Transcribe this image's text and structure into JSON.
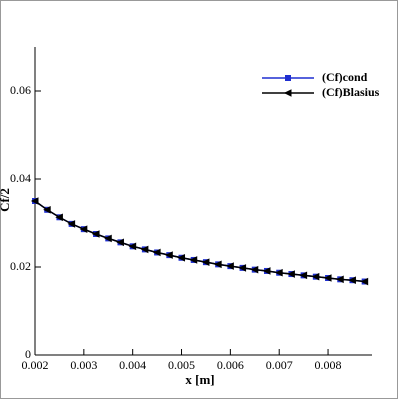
{
  "chart_data": {
    "type": "line",
    "x_label": "x [m]",
    "y_label": "Cf/2",
    "x": [
      0.002,
      0.00225,
      0.0025,
      0.00275,
      0.003,
      0.00325,
      0.0035,
      0.00375,
      0.004,
      0.00425,
      0.0045,
      0.00475,
      0.005,
      0.00525,
      0.0055,
      0.00575,
      0.006,
      0.00625,
      0.0065,
      0.00675,
      0.007,
      0.00725,
      0.0075,
      0.00775,
      0.008,
      0.00825,
      0.0085,
      0.00875
    ],
    "series": [
      {
        "name": "(Cf)cond",
        "color": "#1f2fd0",
        "marker": "square",
        "values": [
          0.035,
          0.033,
          0.0313,
          0.0298,
          0.0286,
          0.0275,
          0.0265,
          0.0256,
          0.0247,
          0.024,
          0.0233,
          0.0227,
          0.0221,
          0.0216,
          0.0211,
          0.0206,
          0.0202,
          0.0198,
          0.0194,
          0.0191,
          0.0187,
          0.0184,
          0.0181,
          0.0178,
          0.0175,
          0.0172,
          0.017,
          0.0167
        ]
      },
      {
        "name": "(Cf)Blasius",
        "color": "#000000",
        "marker": "triangle-left",
        "values": [
          0.035,
          0.033,
          0.0313,
          0.0298,
          0.0286,
          0.0275,
          0.0265,
          0.0256,
          0.0247,
          0.024,
          0.0233,
          0.0227,
          0.0221,
          0.0216,
          0.0211,
          0.0206,
          0.0202,
          0.0198,
          0.0194,
          0.0191,
          0.0187,
          0.0184,
          0.0181,
          0.0178,
          0.0175,
          0.0172,
          0.017,
          0.0167
        ]
      }
    ],
    "xlim": [
      0.002,
      0.0089
    ],
    "xticks": [
      0.002,
      0.003,
      0.004,
      0.005,
      0.006,
      0.007,
      0.008
    ],
    "ylim": [
      0,
      0.07
    ],
    "yticks": [
      0,
      0.02,
      0.04,
      0.06
    ],
    "legend": "top-right"
  }
}
